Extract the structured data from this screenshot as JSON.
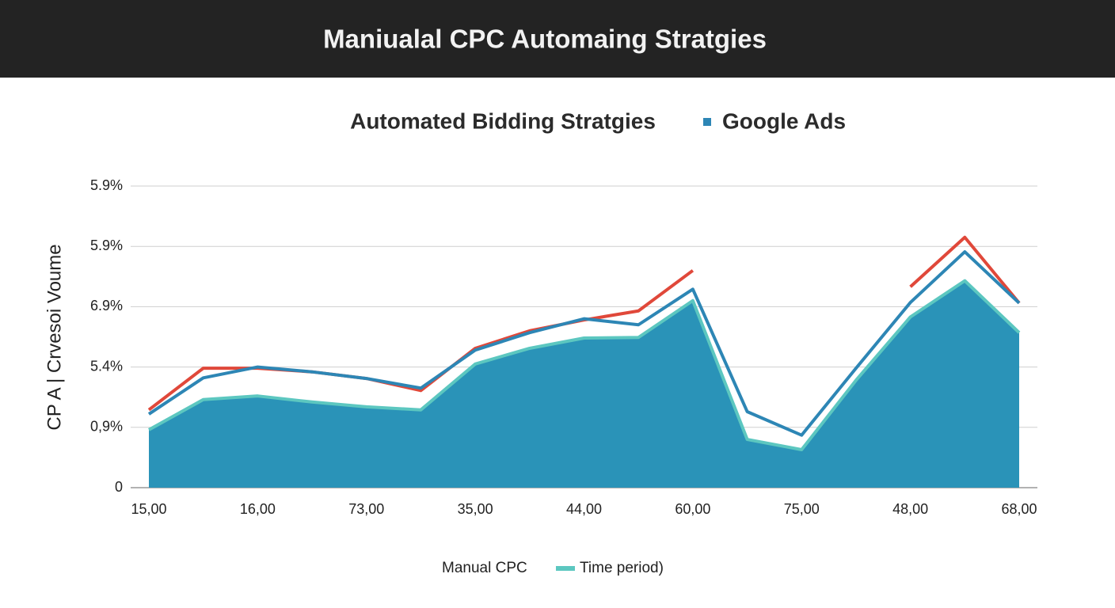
{
  "header": {
    "title": "Maniualal CPC Automaing Stratgies"
  },
  "chart_data": {
    "type": "line",
    "title": "Automated Bidding Stratgies",
    "y_label": "CP A  |   Crvesoi Voume",
    "categories": [
      "15,00",
      null,
      "16,00",
      null,
      "73,00",
      null,
      "35,00",
      null,
      "44,00",
      null,
      "60,00",
      null,
      "75,00",
      null,
      "48,00",
      null,
      "68,00"
    ],
    "series": [
      {
        "name": "Time period)",
        "color": "#5cc7c0",
        "fill": "#2a93b8",
        "area": true,
        "values": [
          0.96,
          1.46,
          1.52,
          1.42,
          1.34,
          1.29,
          2.05,
          2.31,
          2.48,
          2.49,
          3.1,
          0.8,
          0.63,
          1.78,
          2.83,
          3.43,
          2.57
        ]
      },
      {
        "name": "Manual CPC",
        "color": "#e0483a",
        "values": [
          1.29,
          1.98,
          1.98,
          1.92,
          1.81,
          1.61,
          2.31,
          2.6,
          2.78,
          2.93,
          3.6,
          null,
          null,
          null,
          3.33,
          4.15,
          3.06
        ]
      },
      {
        "name": "Google Ads",
        "color": "#2d86b5",
        "values": [
          1.22,
          1.82,
          2.0,
          1.92,
          1.81,
          1.65,
          2.28,
          2.57,
          2.8,
          2.7,
          3.29,
          1.26,
          0.87,
          1.98,
          3.07,
          3.91,
          3.06
        ]
      }
    ],
    "ylim": [
      0,
      5
    ],
    "yticks": [
      0,
      {
        "value": 1,
        "label": "0,9%"
      },
      {
        "value": 2,
        "label": "5.4%"
      },
      {
        "value": 3,
        "label": "6.9%"
      },
      {
        "value": 4,
        "label": "5.9%"
      },
      {
        "value": 5,
        "label": "5.9%"
      }
    ],
    "grid": true
  }
}
